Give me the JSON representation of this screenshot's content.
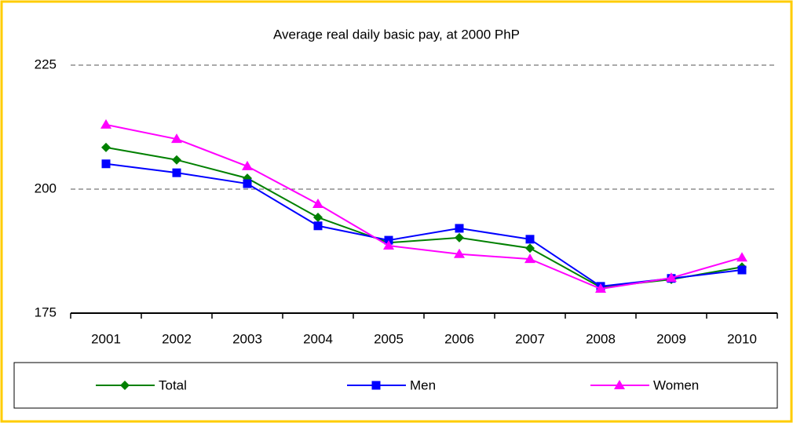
{
  "chart_data": {
    "type": "line",
    "title": "Average real daily basic pay, at 2000 PhP",
    "categories": [
      "2001",
      "2002",
      "2003",
      "2004",
      "2005",
      "2006",
      "2007",
      "2008",
      "2009",
      "2010"
    ],
    "series": [
      {
        "name": "Total",
        "color": "#008000",
        "marker": "diamond",
        "values": [
          208.4,
          205.9,
          202.2,
          194.3,
          189.2,
          190.2,
          188.1,
          180.2,
          181.8,
          184.3
        ]
      },
      {
        "name": "Men",
        "color": "#0000ff",
        "marker": "square",
        "values": [
          205.1,
          203.3,
          201.1,
          192.6,
          189.7,
          192.1,
          189.9,
          180.4,
          182.0,
          183.7
        ]
      },
      {
        "name": "Women",
        "color": "#ff00ff",
        "marker": "triangle",
        "values": [
          213.0,
          210.1,
          204.6,
          197.0,
          188.6,
          186.9,
          185.9,
          179.9,
          182.1,
          186.2
        ]
      }
    ],
    "ylim": [
      175,
      225
    ],
    "yticks": [
      175,
      200,
      225
    ],
    "grid": true,
    "legend": "bottom"
  }
}
